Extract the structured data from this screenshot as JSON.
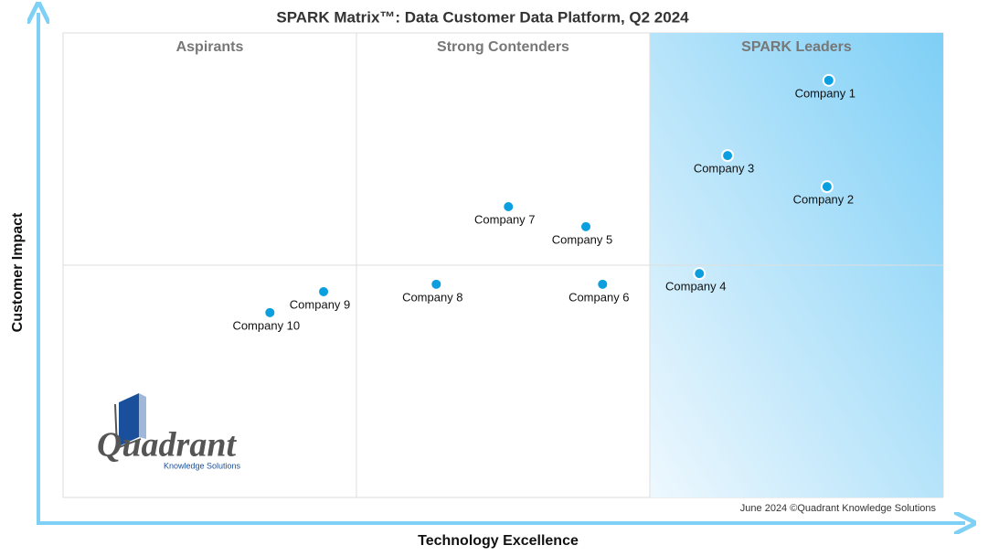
{
  "chart_data": {
    "type": "scatter",
    "title": "SPARK Matrix™: Data Customer Data Platform, Q2 2024",
    "x_label": "Technology Excellence",
    "y_label": "Customer Impact",
    "quadrants": [
      "Aspirants",
      "Strong Contenders",
      "SPARK Leaders"
    ],
    "labels": [
      "Company 1",
      "Company 2",
      "Company 3",
      "Company 4",
      "Company 5",
      "Company 6",
      "Company 7",
      "Company 8",
      "Company 9",
      "Company 10"
    ],
    "x": [
      87.0,
      86.8,
      75.5,
      72.3,
      59.4,
      61.3,
      50.6,
      42.4,
      29.6,
      23.5
    ],
    "values": [
      89.8,
      66.9,
      73.6,
      48.2,
      58.3,
      45.9,
      62.6,
      45.9,
      44.3,
      39.8
    ],
    "xlim": [
      0,
      100
    ],
    "ylim": [
      0,
      100
    ],
    "color": "#0b9fe0",
    "footer": "June 2024 ©Quadrant Knowledge Solutions",
    "logo": {
      "name": "Quadrant",
      "tagline": "Knowledge Solutions"
    }
  }
}
